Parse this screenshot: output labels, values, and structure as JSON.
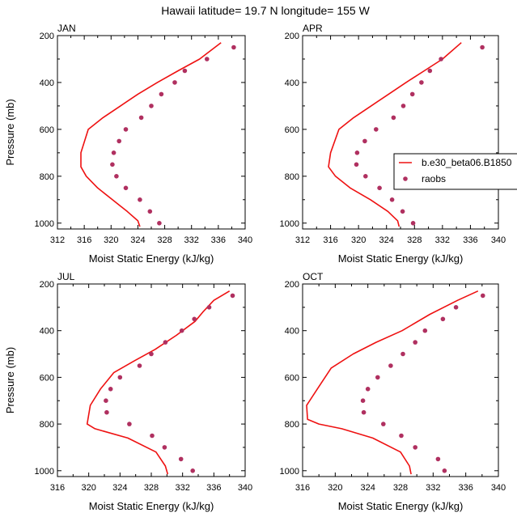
{
  "figure": {
    "title": "Hawaii  latitude= 19.7 N longitude= 155 W"
  },
  "legend": {
    "entries": [
      {
        "label": "b.e30_beta06.B1850",
        "kind": "line",
        "color": "#ee1111"
      },
      {
        "label": "raobs",
        "kind": "marker",
        "color": "#b03060"
      }
    ]
  },
  "colors": {
    "model_line": "#ee1111",
    "raobs_marker": "#b03060",
    "axis": "#000000"
  },
  "chart_data": [
    {
      "type": "line",
      "panel_label": "JAN",
      "xlabel": "Moist Static Energy (kJ/kg)",
      "ylabel": "Pressure (mb)",
      "xlim": [
        312,
        340
      ],
      "ylim": [
        1025,
        200
      ],
      "xticks": [
        "312",
        "316",
        "320",
        "324",
        "328",
        "332",
        "336",
        "340"
      ],
      "yticks": [
        "200",
        "400",
        "600",
        "800",
        "1000"
      ],
      "series": [
        {
          "name": "b.e30_beta06.B1850",
          "style": "line",
          "x": [
            336.4,
            333.2,
            330.0,
            326.9,
            324.0,
            321.4,
            318.8,
            316.6,
            315.5,
            315.5,
            316.3,
            318.0,
            320.2,
            322.4,
            324.0,
            324.3
          ],
          "y": [
            230,
            300,
            350,
            400,
            450,
            500,
            550,
            600,
            700,
            760,
            800,
            850,
            900,
            950,
            990,
            1015
          ]
        },
        {
          "name": "raobs",
          "style": "marker",
          "x": [
            338.3,
            334.3,
            331.0,
            329.5,
            327.5,
            326.0,
            324.5,
            322.2,
            321.2,
            320.4,
            320.2,
            320.8,
            322.2,
            324.3,
            325.8,
            327.2
          ],
          "y": [
            250,
            300,
            350,
            400,
            450,
            500,
            550,
            600,
            650,
            700,
            750,
            800,
            850,
            900,
            950,
            1000
          ]
        }
      ]
    },
    {
      "type": "line",
      "panel_label": "APR",
      "xlabel": "Moist Static Energy (kJ/kg)",
      "ylabel": "",
      "xlim": [
        312,
        340
      ],
      "ylim": [
        1025,
        200
      ],
      "xticks": [
        "312",
        "316",
        "320",
        "324",
        "328",
        "332",
        "336",
        "340"
      ],
      "yticks": [
        "200",
        "400",
        "600",
        "800",
        "1000"
      ],
      "series": [
        {
          "name": "b.e30_beta06.B1850",
          "style": "line",
          "x": [
            334.7,
            332.0,
            329.4,
            326.8,
            324.3,
            321.8,
            319.3,
            317.2,
            316.0,
            315.7,
            316.7,
            318.8,
            321.7,
            324.2,
            325.6,
            325.8
          ],
          "y": [
            230,
            300,
            350,
            400,
            450,
            500,
            550,
            600,
            700,
            760,
            800,
            850,
            900,
            950,
            990,
            1015
          ]
        },
        {
          "name": "raobs",
          "style": "marker",
          "x": [
            337.7,
            331.8,
            330.2,
            329.0,
            327.7,
            326.4,
            325.0,
            322.5,
            320.9,
            319.8,
            319.7,
            321.0,
            323.0,
            324.8,
            326.3,
            327.8
          ],
          "y": [
            250,
            300,
            350,
            400,
            450,
            500,
            550,
            600,
            650,
            700,
            750,
            800,
            850,
            900,
            950,
            1000
          ]
        }
      ]
    },
    {
      "type": "line",
      "panel_label": "JUL",
      "xlabel": "Moist Static Energy (kJ/kg)",
      "ylabel": "Pressure (mb)",
      "xlim": [
        316,
        340
      ],
      "ylim": [
        1025,
        200
      ],
      "xticks": [
        "316",
        "320",
        "324",
        "328",
        "332",
        "336",
        "340"
      ],
      "yticks": [
        "200",
        "400",
        "600",
        "800",
        "1000"
      ],
      "series": [
        {
          "name": "b.e30_beta06.B1850",
          "style": "line",
          "x": [
            338.0,
            336.0,
            334.6,
            333.6,
            331.2,
            328.5,
            325.8,
            323.2,
            321.5,
            320.2,
            319.8,
            320.8,
            325.0,
            328.6,
            329.8,
            330.1
          ],
          "y": [
            230,
            270,
            320,
            360,
            420,
            480,
            530,
            580,
            650,
            720,
            800,
            820,
            860,
            920,
            980,
            1015
          ]
        },
        {
          "name": "raobs",
          "style": "marker",
          "x": [
            338.4,
            335.4,
            333.5,
            331.9,
            329.8,
            328.0,
            326.5,
            324.0,
            322.8,
            322.2,
            322.3,
            325.2,
            328.1,
            329.7,
            331.8,
            333.3
          ],
          "y": [
            250,
            300,
            350,
            400,
            450,
            500,
            550,
            600,
            650,
            700,
            750,
            800,
            850,
            900,
            950,
            1000
          ]
        }
      ]
    },
    {
      "type": "line",
      "panel_label": "OCT",
      "xlabel": "Moist Static Energy (kJ/kg)",
      "ylabel": "",
      "xlim": [
        316,
        340
      ],
      "ylim": [
        1025,
        200
      ],
      "xticks": [
        "316",
        "320",
        "324",
        "328",
        "332",
        "336",
        "340"
      ],
      "yticks": [
        "200",
        "400",
        "600",
        "800",
        "1000"
      ],
      "series": [
        {
          "name": "b.e30_beta06.B1850",
          "style": "line",
          "x": [
            337.5,
            335.0,
            331.6,
            328.2,
            325.0,
            322.2,
            319.5,
            317.8,
            316.5,
            316.6,
            318.0,
            320.8,
            324.6,
            328.0,
            329.1,
            329.3
          ],
          "y": [
            230,
            270,
            330,
            400,
            450,
            500,
            560,
            650,
            720,
            780,
            800,
            820,
            860,
            920,
            980,
            1015
          ]
        },
        {
          "name": "raobs",
          "style": "marker",
          "x": [
            338.1,
            334.8,
            333.2,
            331.0,
            329.8,
            328.3,
            326.8,
            325.2,
            324.0,
            323.4,
            323.5,
            325.9,
            328.1,
            329.8,
            332.6,
            333.4
          ],
          "y": [
            250,
            300,
            350,
            400,
            450,
            500,
            550,
            600,
            650,
            700,
            750,
            800,
            850,
            900,
            950,
            1000
          ]
        }
      ]
    }
  ]
}
